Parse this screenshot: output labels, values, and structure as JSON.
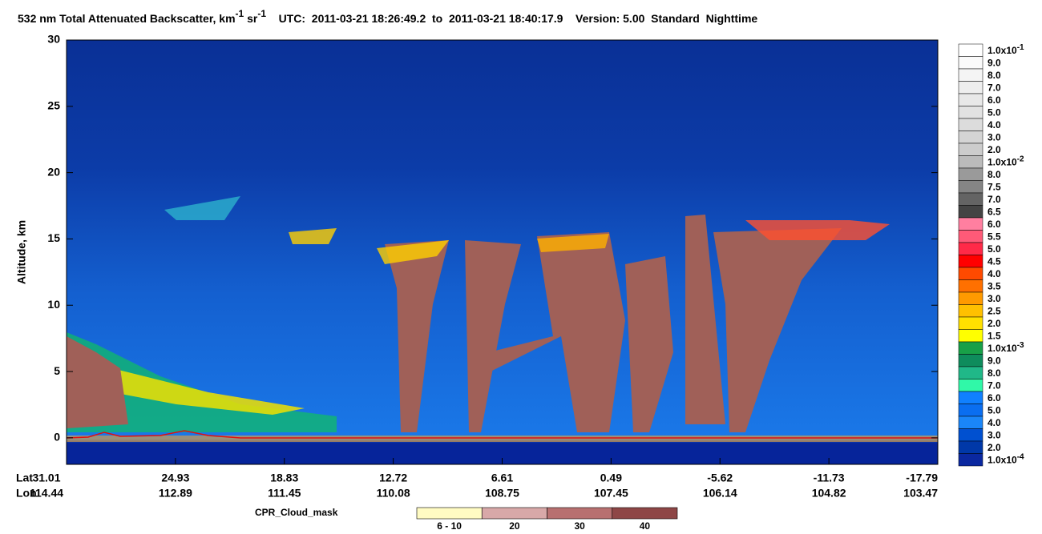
{
  "chart_data": {
    "type": "curtain",
    "title": {
      "main": "532 nm Total Attenuated Backscatter, km",
      "sup1": "-1",
      "mid": " sr",
      "sup2": "-1",
      "rest": "    UTC:  2011-03-21 18:26:49.2  to  2011-03-21 18:40:17.9    Version: 5.00  Standard  Nighttime"
    },
    "ylabel": "Altitude, km",
    "ylim": [
      -2,
      30
    ],
    "yticks": [
      0,
      5,
      10,
      15,
      20,
      25,
      30
    ],
    "x_rows": [
      {
        "label": "Lat",
        "values": [
          31.01,
          24.93,
          18.83,
          12.72,
          6.61,
          0.49,
          -5.62,
          -11.73,
          -17.79
        ]
      },
      {
        "label": "Lon",
        "values": [
          114.44,
          112.89,
          111.45,
          110.08,
          108.75,
          107.45,
          106.14,
          104.82,
          103.47
        ]
      }
    ],
    "colorbar": [
      {
        "text": "1.0x10",
        "sup": "-1",
        "color": "#ffffff"
      },
      {
        "text": "9.0",
        "color": "#fafafa"
      },
      {
        "text": "8.0",
        "color": "#f4f4f4"
      },
      {
        "text": "7.0",
        "color": "#eeeeee"
      },
      {
        "text": "6.0",
        "color": "#e8e8e8"
      },
      {
        "text": "5.0",
        "color": "#e2e2e2"
      },
      {
        "text": "4.0",
        "color": "#dcdcdc"
      },
      {
        "text": "3.0",
        "color": "#d4d4d4"
      },
      {
        "text": "2.0",
        "color": "#cccccc"
      },
      {
        "text": "1.0x10",
        "sup": "-2",
        "color": "#bbbbbb"
      },
      {
        "text": "8.0",
        "color": "#9a9a9a"
      },
      {
        "text": "7.5",
        "color": "#858585"
      },
      {
        "text": "7.0",
        "color": "#646464"
      },
      {
        "text": "6.5",
        "color": "#444444"
      },
      {
        "text": "6.0",
        "color": "#ff7fa0"
      },
      {
        "text": "5.5",
        "color": "#ff5a78"
      },
      {
        "text": "5.0",
        "color": "#ff2a48"
      },
      {
        "text": "4.5",
        "color": "#ff0000"
      },
      {
        "text": "4.0",
        "color": "#ff4a00"
      },
      {
        "text": "3.5",
        "color": "#ff7000"
      },
      {
        "text": "3.0",
        "color": "#ff9a00"
      },
      {
        "text": "2.5",
        "color": "#ffc000"
      },
      {
        "text": "2.0",
        "color": "#ffe000"
      },
      {
        "text": "1.5",
        "color": "#ffff00"
      },
      {
        "text": "1.0x10",
        "sup": "-3",
        "color": "#18a048"
      },
      {
        "text": "9.0",
        "color": "#0e8c5c"
      },
      {
        "text": "8.0",
        "color": "#20b888"
      },
      {
        "text": "7.0",
        "color": "#30f8a8"
      },
      {
        "text": "6.0",
        "color": "#1080ff"
      },
      {
        "text": "5.0",
        "color": "#0a6ef0"
      },
      {
        "text": "4.0",
        "color": "#1a86f8"
      },
      {
        "text": "3.0",
        "color": "#0050d0"
      },
      {
        "text": "2.0",
        "color": "#0038a8"
      },
      {
        "text": "1.0x10",
        "sup": "-4",
        "color": "#0a28a0"
      }
    ],
    "cpr_legend": {
      "label": "CPR_Cloud_mask",
      "classes": [
        {
          "text": "6 - 10",
          "color": "#fffbc3"
        },
        {
          "text": "20",
          "color": "#d8a8a8"
        },
        {
          "text": "30",
          "color": "#b87070"
        },
        {
          "text": "40",
          "color": "#8e4646"
        }
      ]
    }
  }
}
